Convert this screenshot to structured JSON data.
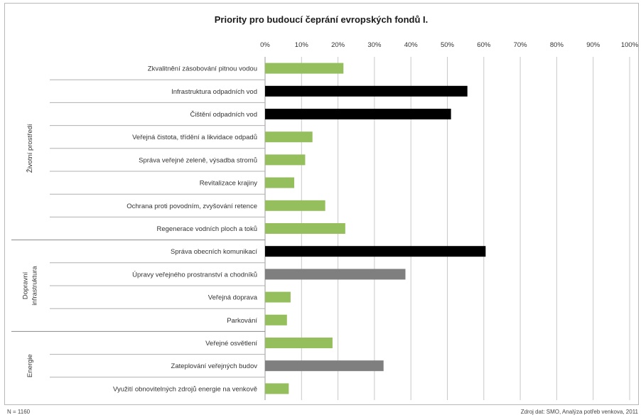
{
  "chart_data": {
    "type": "bar",
    "orientation": "horizontal",
    "title": "Priority pro budoucí čeprání evropských fondů I.",
    "xlim": [
      0,
      100
    ],
    "x_ticks": [
      "0%",
      "10%",
      "20%",
      "30%",
      "40%",
      "50%",
      "60%",
      "70%",
      "80%",
      "90%",
      "100%"
    ],
    "grid": true,
    "groups": [
      {
        "name": "Životní prostředí",
        "categories": [
          {
            "label": "Zkvalitnění zásobování pitnou vodou",
            "value": 21.5,
            "color": "#94bf5c"
          },
          {
            "label": "Infrastruktura odpadních vod",
            "value": 55.5,
            "color": "#000000"
          },
          {
            "label": "Čištění odpadních vod",
            "value": 51.0,
            "color": "#000000"
          },
          {
            "label": "Veřejná čistota, třídění a likvidace odpadů",
            "value": 13.0,
            "color": "#94bf5c"
          },
          {
            "label": "Správa veřejné zeleně, výsadba stromů",
            "value": 11.0,
            "color": "#94bf5c"
          },
          {
            "label": "Revitalizace krajiny",
            "value": 8.0,
            "color": "#94bf5c"
          },
          {
            "label": "Ochrana proti povodním, zvyšování retence",
            "value": 16.5,
            "color": "#94bf5c"
          },
          {
            "label": "Regenerace vodních ploch a toků",
            "value": 22.0,
            "color": "#94bf5c"
          }
        ]
      },
      {
        "name": "Dopravní infrastruktura",
        "name_lines": [
          "Dopravní",
          "infrastruktura"
        ],
        "categories": [
          {
            "label": "Správa obecních komunikací",
            "value": 60.5,
            "color": "#000000"
          },
          {
            "label": "Úpravy veřejného prostranství a chodníků",
            "value": 38.5,
            "color": "#7f7f7f"
          },
          {
            "label": "Veřejná doprava",
            "value": 7.0,
            "color": "#94bf5c"
          },
          {
            "label": "Parkování",
            "value": 6.0,
            "color": "#94bf5c"
          }
        ]
      },
      {
        "name": "Energie",
        "categories": [
          {
            "label": "Veřejné osvětlení",
            "value": 18.5,
            "color": "#94bf5c"
          },
          {
            "label": "Zateplování veřejných budov",
            "value": 32.5,
            "color": "#7f7f7f"
          },
          {
            "label": "Využití obnovitelných zdrojů energie na venkově",
            "value": 6.5,
            "color": "#94bf5c"
          }
        ]
      }
    ]
  },
  "footer": {
    "n": "N = 1160",
    "source": "Zdroj dat: SMO, Analýza potřeb venkova, 2011"
  }
}
